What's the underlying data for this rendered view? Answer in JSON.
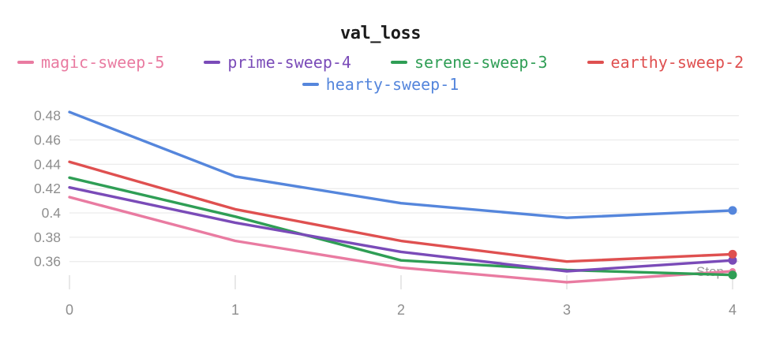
{
  "chart_data": {
    "type": "line",
    "title": "val_loss",
    "xlabel": "Step",
    "x": [
      0,
      1,
      2,
      3,
      4
    ],
    "x_tick_labels": [
      "0",
      "1",
      "2",
      "3",
      "4"
    ],
    "y_tick_values": [
      0.48,
      0.46,
      0.44,
      0.42,
      0.4,
      0.38,
      0.36
    ],
    "y_tick_labels": [
      "0.48",
      "0.46",
      "0.44",
      "0.42",
      "0.4",
      "0.38",
      "0.36"
    ],
    "ylim": [
      0.34,
      0.49
    ],
    "grid": "horizontal",
    "legend_position": "top",
    "end_markers": true,
    "series": [
      {
        "name": "magic-sweep-5",
        "color": "#e97ba1",
        "values": [
          0.413,
          0.377,
          0.355,
          0.343,
          0.352
        ]
      },
      {
        "name": "prime-sweep-4",
        "color": "#7a4bb8",
        "values": [
          0.421,
          0.392,
          0.368,
          0.352,
          0.361
        ]
      },
      {
        "name": "serene-sweep-3",
        "color": "#2f9e55",
        "values": [
          0.429,
          0.397,
          0.361,
          0.353,
          0.349
        ]
      },
      {
        "name": "earthy-sweep-2",
        "color": "#df5050",
        "values": [
          0.442,
          0.403,
          0.377,
          0.36,
          0.366
        ]
      },
      {
        "name": "hearty-sweep-1",
        "color": "#5586dc",
        "values": [
          0.483,
          0.43,
          0.408,
          0.396,
          0.402
        ]
      }
    ]
  },
  "colors": {
    "title_text": "#1b1b1b",
    "axis_text": "#8e8e8e",
    "step_label": "#9a9a9a",
    "grid_line": "#ececec",
    "tick_line": "#e2e2e2",
    "background": "#ffffff"
  }
}
